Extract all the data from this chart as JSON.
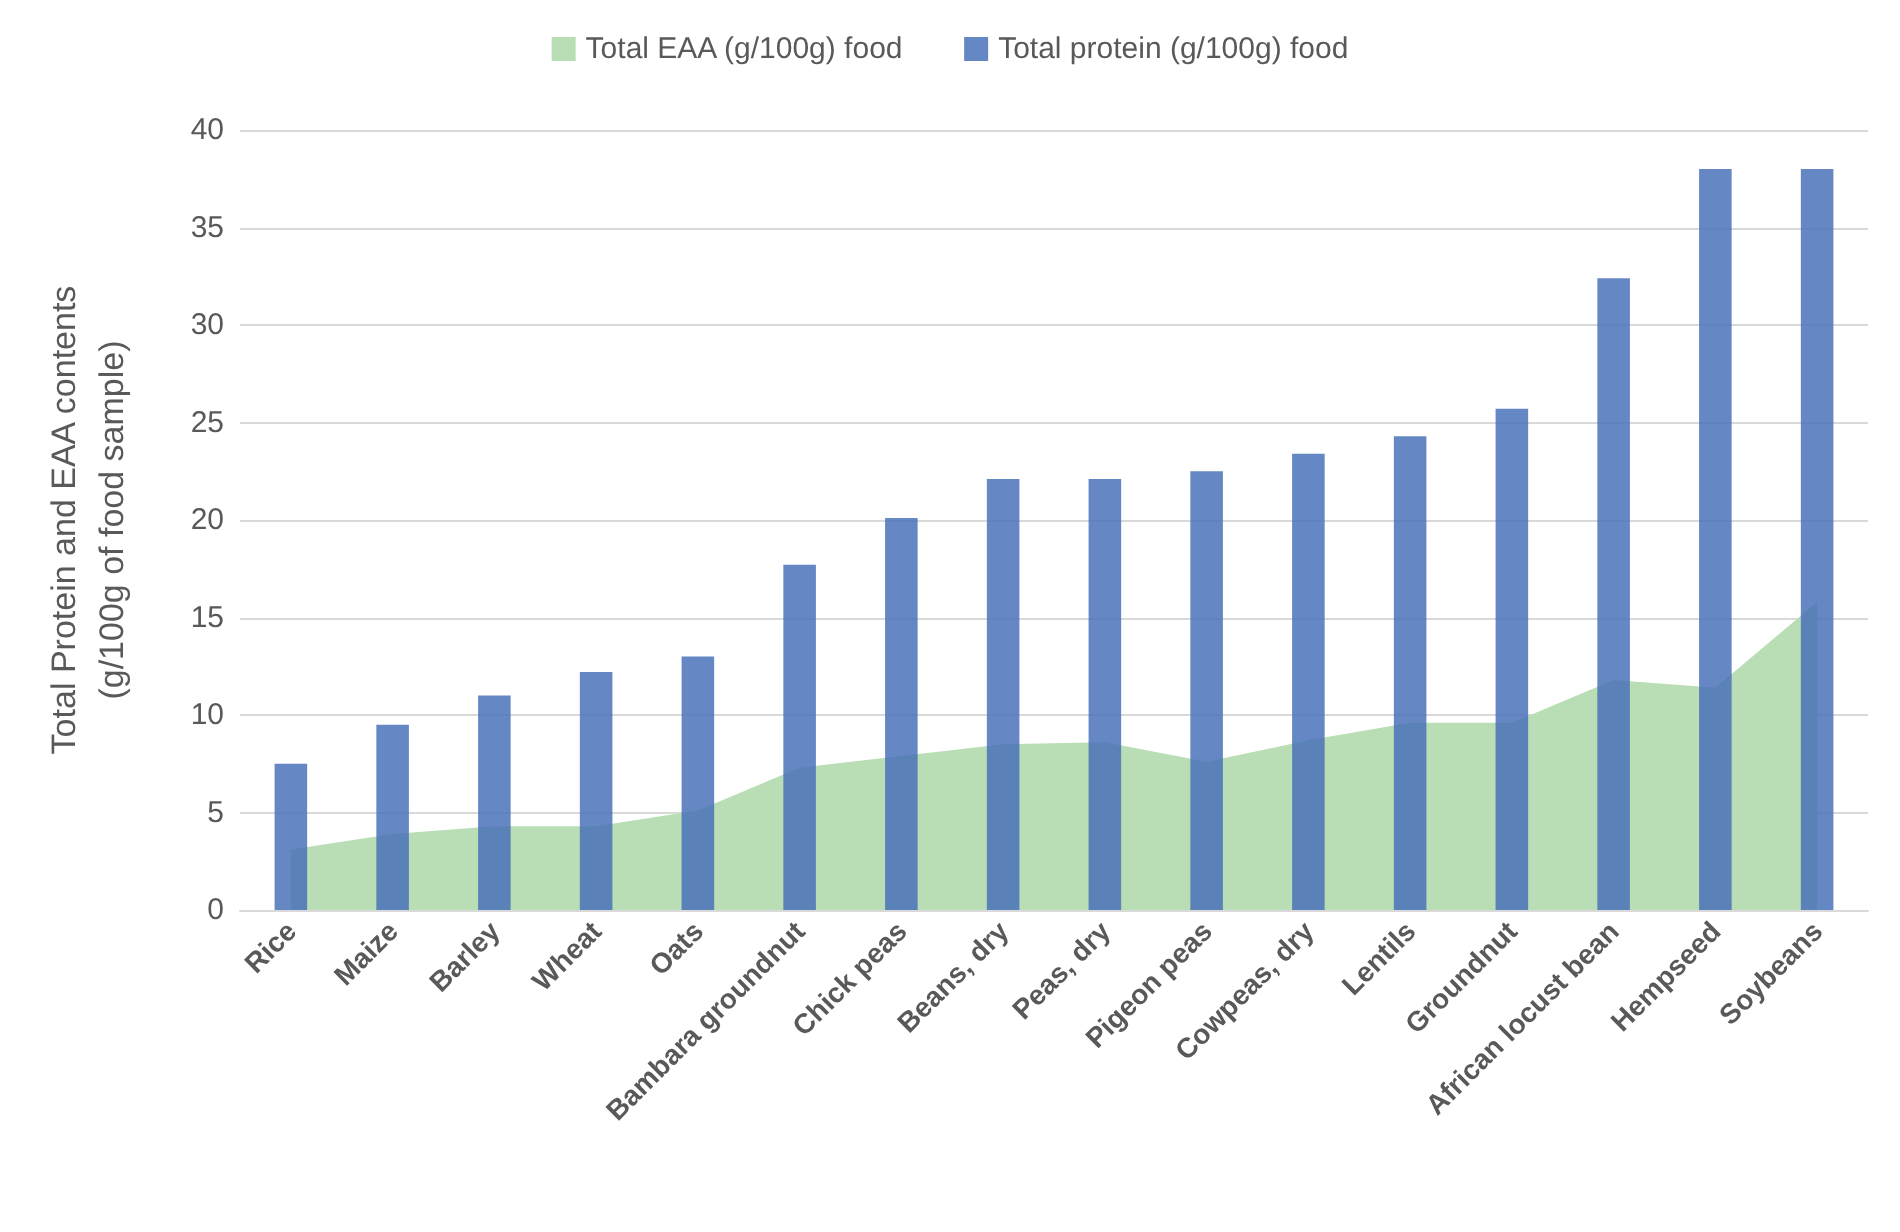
{
  "chart_data": {
    "type": "bar",
    "ylabel": "Total Protein and EAA contents\n(g/100g of food sample)",
    "categories": [
      "Rice",
      "Maize",
      "Barley",
      "Wheat",
      "Oats",
      "Bambara groundnut",
      "Chick peas",
      "Beans, dry",
      "Peas, dry",
      "Pigeon peas",
      "Cowpeas, dry",
      "Lentils",
      "Groundnut",
      "African locust bean",
      "Hempseed",
      "Soybeans"
    ],
    "series": [
      {
        "name": "Total EAA (g/100g) food",
        "type": "area",
        "color": "#b9ddb4",
        "values": [
          3.1,
          3.9,
          4.3,
          4.3,
          5.1,
          7.3,
          7.9,
          8.5,
          8.6,
          7.6,
          8.7,
          9.6,
          9.6,
          11.8,
          11.4,
          15.8
        ]
      },
      {
        "name": "Total protein (g/100g) food",
        "color": "#4a72b8",
        "values": [
          7.5,
          9.5,
          11,
          12.2,
          13,
          17.7,
          20.1,
          22.1,
          22.1,
          22.5,
          23.4,
          24.3,
          25.7,
          32.4,
          38,
          38
        ]
      }
    ],
    "ylim": [
      0,
      40
    ],
    "yticks": [
      0,
      5,
      10,
      15,
      20,
      25,
      30,
      35,
      40
    ],
    "grid": "y",
    "legend": "top"
  }
}
